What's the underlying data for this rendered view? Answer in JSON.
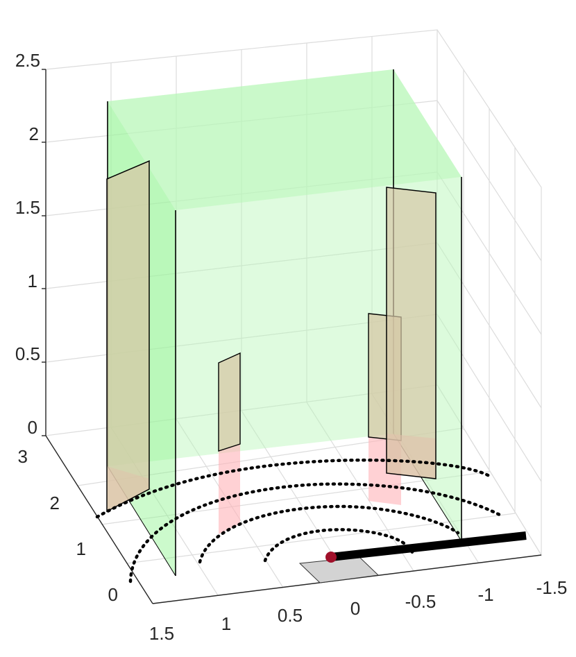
{
  "chart_data": {
    "type": "3d-surface-scene",
    "title": "",
    "xlabel": "",
    "ylabel": "",
    "zlabel": "",
    "grid": true,
    "colors": {
      "obstacle_face": "#d6c8a6",
      "obstacle_shadow": "#ffb3b8",
      "bounding_volume": "#b9f7b9",
      "trajectory_dots": "#000000",
      "robot_link": "#000000",
      "robot_joint": "#a0102a",
      "base_plate": "#d3d3d3"
    },
    "x_ticks": [
      {
        "label": "-1.5",
        "value": -1.5
      },
      {
        "label": "-1",
        "value": -1
      },
      {
        "label": "-0.5",
        "value": -0.5
      },
      {
        "label": "0",
        "value": 0
      },
      {
        "label": "0.5",
        "value": 0.5
      },
      {
        "label": "1",
        "value": 1
      },
      {
        "label": "1.5",
        "value": 1.5
      }
    ],
    "y_ticks": [
      {
        "label": "0",
        "value": 0
      },
      {
        "label": "1",
        "value": 1
      },
      {
        "label": "2",
        "value": 2
      },
      {
        "label": "3",
        "value": 3
      }
    ],
    "z_ticks": [
      {
        "label": "0",
        "value": 0
      },
      {
        "label": "0.5",
        "value": 0.5
      },
      {
        "label": "1",
        "value": 1
      },
      {
        "label": "1.5",
        "value": 1.5
      },
      {
        "label": "2",
        "value": 2
      },
      {
        "label": "2.5",
        "value": 2.5
      }
    ],
    "xlim": [
      -1.5,
      1.5
    ],
    "ylim": [
      0,
      3
    ],
    "zlim": [
      0,
      2.5
    ],
    "workspace_arcs_radii": [
      0.5,
      1.0,
      1.5,
      2.0
    ],
    "robot_link": {
      "from": [
        0,
        0
      ],
      "to": [
        -1.5,
        0.25
      ]
    },
    "robot_joint": [
      0,
      0
    ],
    "base_plate": {
      "x": [
        -0.25,
        0.25
      ],
      "y": [
        -0.5,
        -0.15
      ]
    }
  }
}
